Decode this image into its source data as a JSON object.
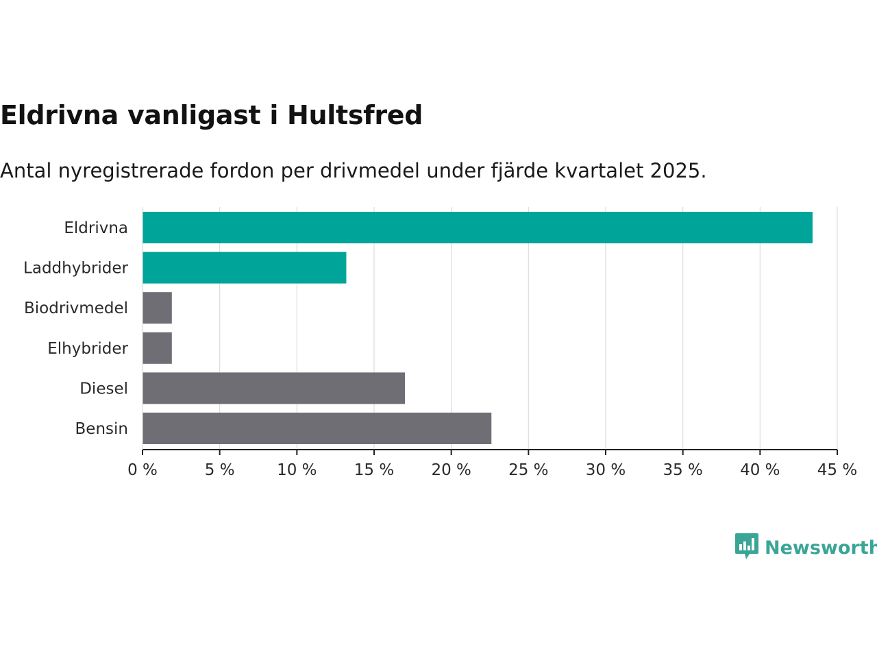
{
  "title": "Eldrivna vanligast i Hultsfred",
  "subtitle": "Antal nyregistrerade fordon per drivmedel under fjärde kvartalet 2025.",
  "brand": {
    "name": "Newsworthy",
    "icon": "newsworthy-logo-icon",
    "color": "#3aa596"
  },
  "chart_data": {
    "type": "bar",
    "orientation": "horizontal",
    "categories": [
      "Eldrivna",
      "Laddhybrider",
      "Biodrivmedel",
      "Elhybrider",
      "Diesel",
      "Bensin"
    ],
    "values": [
      43.4,
      13.2,
      1.9,
      1.9,
      17.0,
      22.6
    ],
    "unit": "%",
    "highlight": [
      true,
      true,
      false,
      false,
      false,
      false
    ],
    "colors": {
      "highlight": "#00a499",
      "default": "#6f6e74"
    },
    "xlim": [
      0,
      45
    ],
    "xticks": [
      0,
      5,
      10,
      15,
      20,
      25,
      30,
      35,
      40,
      45
    ],
    "tick_labels": [
      "0 %",
      "5 %",
      "10 %",
      "15 %",
      "20 %",
      "25 %",
      "30 %",
      "35 %",
      "40 %",
      "45 %"
    ],
    "grid": true,
    "xlabel": "",
    "ylabel": ""
  }
}
